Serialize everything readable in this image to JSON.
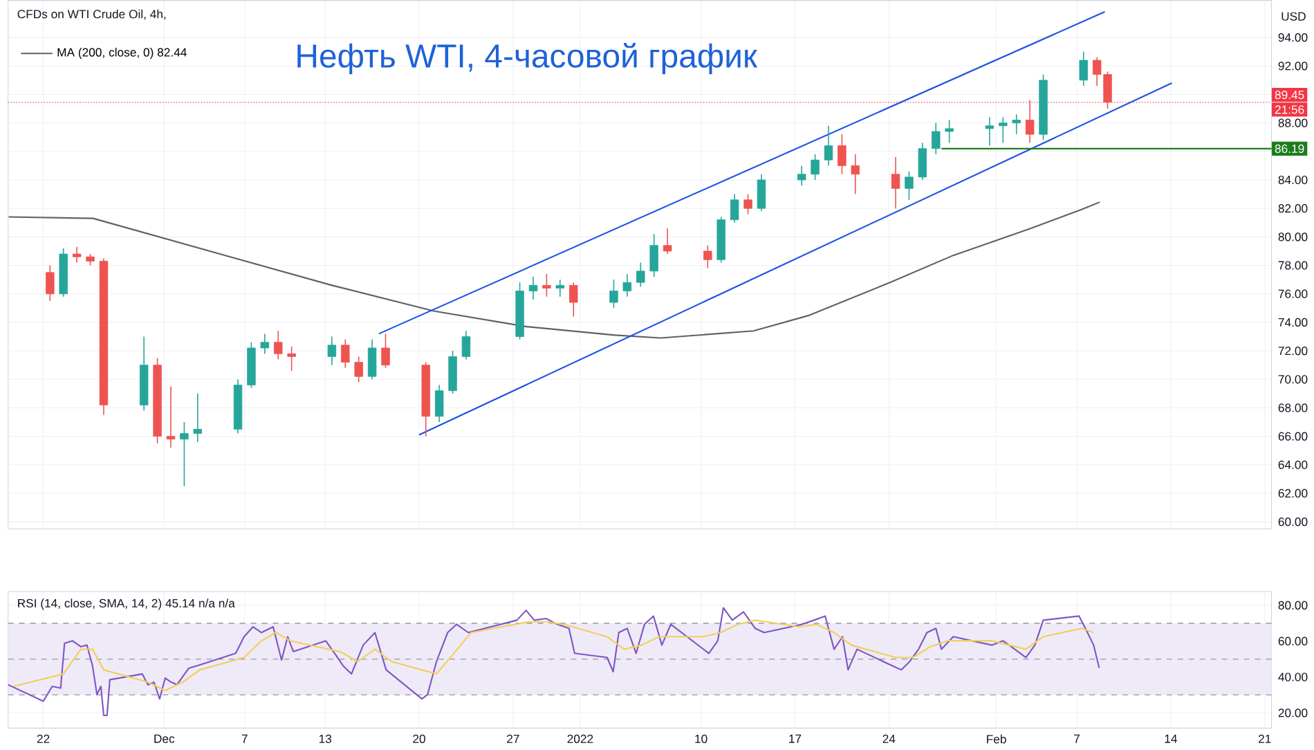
{
  "chart_data": [
    {
      "type": "candlestick",
      "title": "Нефть WTI, 4-часовой график",
      "ylabel": "USD",
      "annotations": [
        "CFDs on WTI Crude Oil, 4h,",
        "21:56"
      ],
      "x": [
        "2021-11-22T12:00",
        "2021-11-23T12:00",
        "2021-11-24T12:00",
        "2021-11-25T12:00",
        "2021-11-26T12:00",
        "2021-11-29T12:00",
        "2021-11-30T12:00",
        "2021-12-01T12:00",
        "2021-12-02T12:00",
        "2021-12-03T12:00",
        "2021-12-06T12:00",
        "2021-12-07T12:00",
        "2021-12-08T12:00",
        "2021-12-09T12:00",
        "2021-12-10T12:00",
        "2021-12-13T12:00",
        "2021-12-14T12:00",
        "2021-12-15T12:00",
        "2021-12-16T12:00",
        "2021-12-17T12:00",
        "2021-12-20T12:00",
        "2021-12-21T12:00",
        "2021-12-22T12:00",
        "2021-12-23T12:00",
        "2021-12-27T12:00",
        "2021-12-28T12:00",
        "2021-12-29T12:00",
        "2021-12-30T12:00",
        "2021-12-31T12:00",
        "2022-01-03T12:00",
        "2022-01-04T12:00",
        "2022-01-05T12:00",
        "2022-01-06T12:00",
        "2022-01-07T12:00",
        "2022-01-10T12:00",
        "2022-01-11T12:00",
        "2022-01-12T12:00",
        "2022-01-13T12:00",
        "2022-01-14T12:00",
        "2022-01-17T12:00",
        "2022-01-18T12:00",
        "2022-01-19T12:00",
        "2022-01-20T12:00",
        "2022-01-21T12:00",
        "2022-01-24T12:00",
        "2022-01-25T12:00",
        "2022-01-26T12:00",
        "2022-01-27T12:00",
        "2022-01-28T12:00",
        "2022-01-31T12:00",
        "2022-02-01T12:00",
        "2022-02-02T12:00",
        "2022-02-03T12:00",
        "2022-02-04T12:00",
        "2022-02-07T12:00",
        "2022-02-08T12:00",
        "2022-02-09T07:00"
      ],
      "ohlc": [
        [
          77.5,
          78,
          75.5,
          76
        ],
        [
          76,
          79.2,
          75.8,
          78.8
        ],
        [
          78.8,
          79.3,
          78.2,
          78.6
        ],
        [
          78.6,
          78.8,
          78,
          78.3
        ],
        [
          78.3,
          78.5,
          67.5,
          68.2
        ],
        [
          68.2,
          73,
          67.8,
          71
        ],
        [
          71,
          71.5,
          65.5,
          66
        ],
        [
          66,
          69.5,
          65.2,
          65.8
        ],
        [
          65.8,
          67,
          62.5,
          66.2
        ],
        [
          66.2,
          69,
          65.6,
          66.5
        ],
        [
          66.5,
          70,
          66.2,
          69.6
        ],
        [
          69.6,
          72.6,
          69.4,
          72.2
        ],
        [
          72.2,
          73.2,
          71.8,
          72.6
        ],
        [
          72.6,
          73.4,
          71.4,
          71.8
        ],
        [
          71.8,
          72.3,
          70.6,
          71.6
        ],
        [
          71.6,
          73,
          71,
          72.4
        ],
        [
          72.4,
          72.8,
          70.8,
          71.2
        ],
        [
          71.2,
          71.6,
          69.8,
          70.2
        ],
        [
          70.2,
          72.8,
          70,
          72.2
        ],
        [
          72.2,
          73.2,
          70.8,
          71
        ],
        [
          71,
          71.2,
          66,
          67.4
        ],
        [
          67.4,
          69.6,
          67,
          69.2
        ],
        [
          69.2,
          72,
          69,
          71.6
        ],
        [
          71.6,
          73.4,
          71.4,
          73
        ],
        [
          73,
          76.8,
          72.8,
          76.2
        ],
        [
          76.2,
          77.2,
          75.6,
          76.6
        ],
        [
          76.6,
          77.4,
          75.8,
          76.4
        ],
        [
          76.4,
          77,
          75.8,
          76.6
        ],
        [
          76.6,
          76.8,
          74.4,
          75.4
        ],
        [
          75.4,
          77,
          75,
          76.2
        ],
        [
          76.2,
          77.4,
          75.8,
          76.8
        ],
        [
          76.8,
          78.2,
          76.5,
          77.6
        ],
        [
          77.6,
          80.2,
          77.2,
          79.4
        ],
        [
          79.4,
          80.6,
          78.8,
          79
        ],
        [
          79,
          79.4,
          77.8,
          78.4
        ],
        [
          78.4,
          81.4,
          78.2,
          81.2
        ],
        [
          81.2,
          83,
          81,
          82.6
        ],
        [
          82.6,
          83,
          81.6,
          82
        ],
        [
          82,
          84.4,
          81.8,
          84
        ],
        [
          84,
          85,
          83.6,
          84.4
        ],
        [
          84.4,
          85.8,
          84,
          85.4
        ],
        [
          85.4,
          87.8,
          85,
          86.4
        ],
        [
          86.4,
          87.2,
          84.4,
          85
        ],
        [
          85,
          85.8,
          83,
          84.4
        ],
        [
          84.4,
          85.6,
          82,
          83.4
        ],
        [
          83.4,
          84.6,
          82.6,
          84.2
        ],
        [
          84.2,
          86.6,
          84,
          86.2
        ],
        [
          86.2,
          88,
          85.8,
          87.4
        ],
        [
          87.4,
          88.2,
          86.6,
          87.6
        ],
        [
          87.6,
          88.4,
          86.4,
          87.8
        ],
        [
          87.8,
          88.4,
          86.6,
          88
        ],
        [
          88,
          88.6,
          87.2,
          88.2
        ],
        [
          88.2,
          89.6,
          86.6,
          87.2
        ],
        [
          87.2,
          91.4,
          86.8,
          91
        ],
        [
          91,
          93,
          90.6,
          92.4
        ],
        [
          92.4,
          92.6,
          90.6,
          91.4
        ],
        [
          91.4,
          91.6,
          89,
          89.45
        ]
      ],
      "series": [
        {
          "type": "line",
          "name": "MA (200, close, 0)  82.44",
          "color": "#5d606b",
          "x": [
            "2021-11-19T10:00",
            "2021-11-25T17:00",
            "2021-12-06T07:00",
            "2021-12-13T12:00",
            "2021-12-21T02:00",
            "2021-12-28T00:00",
            "2022-01-03T14:00",
            "2022-01-07T00:00",
            "2022-01-13T22:00",
            "2022-01-18T02:00",
            "2022-01-24T02:00",
            "2022-01-28T19:00",
            "2022-02-03T14:00",
            "2022-02-07T07:00",
            "2022-02-08T17:00"
          ],
          "values": [
            81.4,
            81.3,
            78.5,
            76.6,
            74.8,
            73.7,
            73.1,
            72.9,
            73.4,
            74.5,
            76.8,
            78.7,
            80.6,
            81.9,
            82.44
          ]
        },
        {
          "type": "line",
          "color": "#1e53e5",
          "x": [
            "2021-12-17T00:00",
            "2022-02-09T02:00"
          ],
          "values": [
            73.2,
            95.8
          ]
        },
        {
          "type": "line",
          "color": "#1e53e5",
          "x": [
            "2021-12-20T00:00",
            "2022-02-14T02:00"
          ],
          "values": [
            66.1,
            90.8
          ]
        },
        {
          "type": "line",
          "color": "#1b7d1b",
          "x": [
            "2022-01-27T22:00",
            "2022-02-21T12:00"
          ],
          "values": [
            86.19,
            86.19
          ],
          "value_labels": [
            null,
            "86.19"
          ]
        }
      ],
      "ref_lines": [
        {
          "axis": "y",
          "value": 89.45,
          "label": "89.45",
          "color": "#f23645",
          "line_style": "dotted"
        }
      ],
      "xlim": [
        "2021-11-19T09:00",
        "2022-02-21T12:00"
      ],
      "ylim": [
        59.5,
        96.6
      ],
      "xticks": [
        {
          "value": "2021-11-22",
          "label": null
        },
        {
          "value": "2021-12-01",
          "label": null
        },
        {
          "value": "2021-12-07",
          "label": null
        },
        {
          "value": "2021-12-13",
          "label": null
        },
        {
          "value": "2021-12-20",
          "label": null
        },
        {
          "value": "2021-12-27",
          "label": null
        },
        {
          "value": "2022-01-01",
          "label": null
        },
        {
          "value": "2022-01-10",
          "label": null
        },
        {
          "value": "2022-01-17",
          "label": null
        },
        {
          "value": "2022-01-24",
          "label": null
        },
        {
          "value": "2022-02-01",
          "label": null
        },
        {
          "value": "2022-02-07",
          "label": null
        },
        {
          "value": "2022-02-14",
          "label": null
        },
        {
          "value": "2022-02-21",
          "label": null
        }
      ],
      "yticks": [
        {
          "value": 60,
          "label": "60.00"
        },
        {
          "value": 62,
          "label": "62.00"
        },
        {
          "value": 64,
          "label": "64.00"
        },
        {
          "value": 66,
          "label": "66.00"
        },
        {
          "value": 68,
          "label": "68.00"
        },
        {
          "value": 70,
          "label": "70.00"
        },
        {
          "value": 72,
          "label": "72.00"
        },
        {
          "value": 74,
          "label": "74.00"
        },
        {
          "value": 76,
          "label": "76.00"
        },
        {
          "value": 78,
          "label": "78.00"
        },
        {
          "value": 80,
          "label": "80.00"
        },
        {
          "value": 82,
          "label": "82.00"
        },
        {
          "value": 84,
          "label": "84.00"
        },
        {
          "value": 86,
          "label": null
        },
        {
          "value": 88,
          "label": "88.00"
        },
        {
          "value": 90,
          "label": null
        },
        {
          "value": 92,
          "label": "92.00"
        },
        {
          "value": 94,
          "label": "94.00"
        }
      ],
      "grid": true,
      "legend": "top left",
      "tick_labels": "y"
    },
    {
      "type": "line",
      "title": "RSI (14, close, SMA, 14, 2)",
      "annotations": [
        "45.14",
        "n/a  n/a"
      ],
      "series": [
        {
          "color": "#7e57c2",
          "x": [
            "2021-11-19T09:00",
            "2021-11-22T00:00",
            "2021-11-22T16:00",
            "2021-11-23T07:00",
            "2021-11-23T14:00",
            "2021-11-24T04:00",
            "2021-11-24T19:00",
            "2021-11-25T06:00",
            "2021-11-25T16:00",
            "2021-11-26T00:00",
            "2021-11-26T07:00",
            "2021-11-26T12:00",
            "2021-11-26T18:00",
            "2021-11-26T23:00",
            "2021-11-29T09:00",
            "2021-11-29T19:00",
            "2021-11-30T06:00",
            "2021-11-30T16:00",
            "2021-12-01T02:00",
            "2021-12-01T13:00",
            "2021-12-01T23:00",
            "2021-12-02T20:00",
            "2021-12-03T11:00",
            "2021-12-06T08:00",
            "2021-12-06T23:00",
            "2021-12-07T15:00",
            "2021-12-08T06:00",
            "2021-12-09T03:00",
            "2021-12-09T18:00",
            "2021-12-10T05:00",
            "2021-12-10T15:00",
            "2021-12-13T01:00",
            "2021-12-13T17:00",
            "2021-12-14T08:00",
            "2021-12-14T23:00",
            "2021-12-15T20:00",
            "2021-12-16T17:00",
            "2021-12-17T13:00",
            "2021-12-20T05:00",
            "2021-12-20T15:00",
            "2021-12-21T07:00",
            "2021-12-22T03:00",
            "2021-12-22T19:00",
            "2021-12-23T16:00",
            "2021-12-27T07:00",
            "2021-12-27T23:00",
            "2021-12-28T14:00",
            "2021-12-29T11:00",
            "2021-12-30T07:00",
            "2021-12-31T04:00",
            "2021-12-31T14:00",
            "2022-01-03T00:00",
            "2022-01-03T11:00",
            "2022-01-03T21:00",
            "2022-01-04T12:00",
            "2022-01-05T04:00",
            "2022-01-05T19:00",
            "2022-01-06T11:00",
            "2022-01-07T02:00",
            "2022-01-07T18:00",
            "2022-01-10T14:00",
            "2022-01-11T06:00",
            "2022-01-11T16:00",
            "2022-01-12T08:00",
            "2022-01-13T04:00",
            "2022-01-14T01:00",
            "2022-01-14T17:00",
            "2022-01-17T13:00",
            "2022-01-18T10:00",
            "2022-01-19T06:00",
            "2022-01-19T22:00",
            "2022-01-20T13:00",
            "2022-01-20T23:00",
            "2022-01-21T15:00",
            "2022-01-24T06:00",
            "2022-01-24T22:00",
            "2022-01-25T13:00",
            "2022-01-26T05:00",
            "2022-01-26T20:00",
            "2022-01-27T12:00",
            "2022-01-27T22:00",
            "2022-01-28T19:00",
            "2022-01-31T16:00",
            "2022-02-01T12:00",
            "2022-02-02T09:00",
            "2022-02-03T05:00",
            "2022-02-03T21:00",
            "2022-02-04T12:00",
            "2022-02-07T04:00",
            "2022-02-07T19:00",
            "2022-02-08T06:00",
            "2022-02-08T16:00"
          ],
          "values": [
            35.7,
            26.5,
            34.8,
            33.8,
            58.8,
            60.2,
            56.9,
            57.8,
            46.3,
            30.2,
            34.8,
            18.6,
            18.6,
            38.5,
            41.7,
            35.7,
            37.1,
            27.8,
            39.4,
            37.1,
            35.7,
            44.9,
            46.3,
            53.2,
            62.5,
            68,
            64.8,
            68,
            49.5,
            62.5,
            54.2,
            60.2,
            53.2,
            46.3,
            41.7,
            57.8,
            64.8,
            44,
            27.8,
            30.2,
            48.6,
            64.8,
            69.4,
            64.8,
            71.7,
            77.2,
            71.7,
            72.6,
            69.4,
            67.1,
            53.2,
            50.9,
            43,
            64.8,
            67.1,
            53.2,
            69.4,
            74,
            57.8,
            69.4,
            53.2,
            60.2,
            78.6,
            71.7,
            76.3,
            67.1,
            64.8,
            69.4,
            71.7,
            74,
            55.5,
            62.5,
            44,
            55.5,
            46.3,
            44,
            48.6,
            55.5,
            64.8,
            67.1,
            55.5,
            62.5,
            57.8,
            60.2,
            55.5,
            50.9,
            57.8,
            71.7,
            74,
            64.8,
            57.8,
            45.14
          ]
        },
        {
          "color": "#f2cf5b",
          "x": [
            "2021-11-19T19:00",
            "2021-11-23T12:00",
            "2021-11-24T19:00",
            "2021-11-25T16:00",
            "2021-11-26T12:00",
            "2021-11-29T19:00",
            "2021-12-01T02:00",
            "2021-12-02T09:00",
            "2021-12-03T16:00",
            "2021-12-06T23:00",
            "2021-12-08T06:00",
            "2021-12-09T08:00",
            "2021-12-10T10:00",
            "2021-12-13T06:00",
            "2021-12-14T03:00",
            "2021-12-15T10:00",
            "2021-12-16T17:00",
            "2021-12-17T23:00",
            "2021-12-21T07:00",
            "2021-12-22T14:00",
            "2021-12-23T21:00",
            "2021-12-28T04:00",
            "2021-12-29T11:00",
            "2021-12-30T18:00",
            "2022-01-03T00:00",
            "2022-01-04T07:00",
            "2022-01-05T14:00",
            "2022-01-06T21:00",
            "2022-01-10T04:00",
            "2022-01-11T11:00",
            "2022-01-12T18:00",
            "2022-01-14T01:00",
            "2022-01-17T08:00",
            "2022-01-18T15:00",
            "2022-01-19T22:00",
            "2022-01-21T05:00",
            "2022-01-24T12:00",
            "2022-01-25T19:00",
            "2022-01-27T02:00",
            "2022-01-28T09:00",
            "2022-01-31T16:00",
            "2022-02-01T23:00",
            "2022-02-03T05:00",
            "2022-02-04T12:00",
            "2022-02-07T09:00",
            "2022-02-08T06:00"
          ],
          "values": [
            34.8,
            41.7,
            55.5,
            55.5,
            44,
            37.1,
            32.5,
            37.1,
            44,
            50.9,
            60.2,
            64.8,
            60.2,
            55.5,
            54.2,
            48.6,
            55.5,
            48.6,
            41.7,
            53.2,
            64.8,
            70.8,
            70.8,
            69.4,
            62.5,
            55.5,
            57.8,
            62.5,
            62.5,
            64.8,
            69.4,
            71.7,
            68,
            69.4,
            64.8,
            57.8,
            50.9,
            50.9,
            56.9,
            60.2,
            60.2,
            57.8,
            55.5,
            62.5,
            67.1,
            64.8
          ]
        }
      ],
      "bands": [
        {
          "axis": "y",
          "from": 30,
          "to": 70,
          "color": "#efeaf8"
        }
      ],
      "ref_lines": [
        {
          "axis": "y",
          "value": 30,
          "color": "#9598a1",
          "line_style": "dashed"
        },
        {
          "axis": "y",
          "value": 50,
          "color": "#9598a1",
          "line_style": "dashed"
        },
        {
          "axis": "y",
          "value": 70,
          "color": "#9598a1",
          "line_style": "dashed"
        }
      ],
      "xlim": [
        "2021-11-19T09:00",
        "2022-02-21T12:00"
      ],
      "ylim": [
        11.5,
        87.7
      ],
      "xticks": [
        {
          "value": "2021-11-22",
          "label": "22"
        },
        {
          "value": "2021-12-01",
          "label": "Dec"
        },
        {
          "value": "2021-12-07",
          "label": "7"
        },
        {
          "value": "2021-12-13",
          "label": "13"
        },
        {
          "value": "2021-12-20",
          "label": "20"
        },
        {
          "value": "2021-12-27",
          "label": "27"
        },
        {
          "value": "2022-01-01",
          "label": "2022"
        },
        {
          "value": "2022-01-10",
          "label": "10"
        },
        {
          "value": "2022-01-17",
          "label": "17"
        },
        {
          "value": "2022-01-24",
          "label": "24"
        },
        {
          "value": "2022-02-01",
          "label": "Feb"
        },
        {
          "value": "2022-02-07",
          "label": "7"
        },
        {
          "value": "2022-02-14",
          "label": "14"
        },
        {
          "value": "2022-02-21",
          "label": "21"
        }
      ],
      "yticks": [
        {
          "value": 20,
          "label": "20.00"
        },
        {
          "value": 40,
          "label": "40.00"
        },
        {
          "value": 60,
          "label": "60.00"
        },
        {
          "value": 80,
          "label": "80.00"
        }
      ],
      "grid": true
    }
  ]
}
